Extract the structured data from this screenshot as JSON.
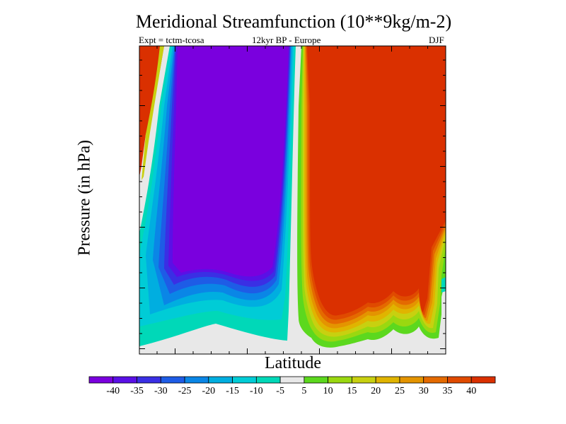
{
  "chart_data": {
    "type": "contour",
    "title": "Meridional Streamfunction (10**9kg/m-2)",
    "subtitle_left": "Expt = tctm-tcosa",
    "subtitle_center": "12kyr BP - Europe",
    "season": "DJF",
    "xlabel": "Latitude",
    "ylabel": "Pressure (in hPa)",
    "colorbar": {
      "levels": [
        -40,
        -35,
        -30,
        -25,
        -20,
        -15,
        -10,
        -5,
        5,
        10,
        15,
        20,
        25,
        30,
        35,
        40
      ],
      "tick_labels": [
        "-40",
        "-35",
        "-30",
        "-25",
        "-20",
        "-15",
        "-10",
        "-5",
        "5",
        "10",
        "15",
        "20",
        "25",
        "30",
        "35",
        "40"
      ],
      "colors": [
        "#7a00de",
        "#5a10e6",
        "#3a2fe4",
        "#1e5ce6",
        "#0a86e6",
        "#00aee0",
        "#00ccd6",
        "#00d8b8",
        "#e8e8e8",
        "#5cd81e",
        "#9ad810",
        "#c8d010",
        "#e0b400",
        "#e49400",
        "#e46a00",
        "#e04a00",
        "#da3000"
      ]
    },
    "features": [
      {
        "name": "negative-cell",
        "range": "< -40",
        "latitude_side": "left-center"
      },
      {
        "name": "positive-cell",
        "range": "> 40",
        "latitude_side": "right-center"
      }
    ]
  }
}
